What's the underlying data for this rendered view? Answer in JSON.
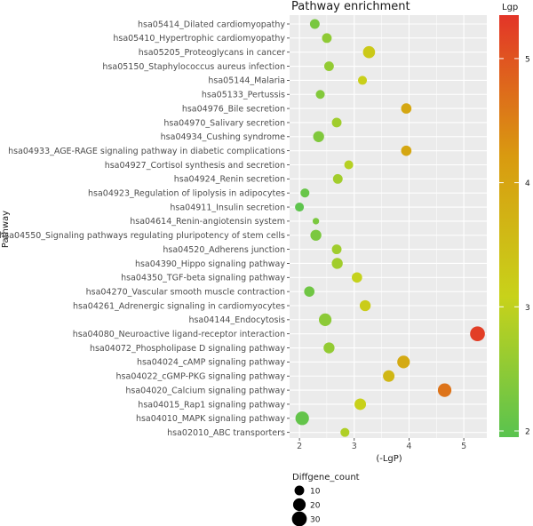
{
  "chart_data": {
    "type": "scatter",
    "title": "Pathway enrichment",
    "xlabel": "(-LgP)",
    "ylabel": "Pathway",
    "xlim": [
      1.82,
      5.42
    ],
    "x_ticks": [
      "2",
      "3",
      "4",
      "5"
    ],
    "grid": true,
    "categories": [
      "hsa05414_Dilated cardiomyopathy",
      "hsa05410_Hypertrophic cardiomyopathy",
      "hsa05205_Proteoglycans in cancer",
      "hsa05150_Staphylococcus aureus infection",
      "hsa05144_Malaria",
      "hsa05133_Pertussis",
      "hsa04976_Bile secretion",
      "hsa04970_Salivary secretion",
      "hsa04934_Cushing syndrome",
      "hsa04933_AGE-RAGE signaling pathway in diabetic complications",
      "hsa04927_Cortisol synthesis and secretion",
      "hsa04924_Renin secretion",
      "hsa04923_Regulation of lipolysis in adipocytes",
      "hsa04911_Insulin secretion",
      "hsa04614_Renin-angiotensin system",
      "hsa04550_Signaling pathways regulating pluripotency of stem cells",
      "hsa04520_Adherens junction",
      "hsa04390_Hippo signaling pathway",
      "hsa04350_TGF-beta signaling pathway",
      "hsa04270_Vascular smooth muscle contraction",
      "hsa04261_Adrenergic signaling in cardiomyocytes",
      "hsa04144_Endocytosis",
      "hsa04080_Neuroactive ligand-receptor interaction",
      "hsa04072_Phospholipase D signaling pathway",
      "hsa04024_cAMP signaling pathway",
      "hsa04022_cGMP-PKG signaling pathway",
      "hsa04020_Calcium signaling pathway",
      "hsa04015_Rap1 signaling pathway",
      "hsa04010_MAPK signaling pathway",
      "hsa02010_ABC transporters"
    ],
    "x": [
      2.28,
      2.5,
      3.27,
      2.54,
      3.15,
      2.38,
      3.95,
      2.68,
      2.35,
      3.95,
      2.9,
      2.7,
      2.1,
      2.0,
      2.3,
      2.3,
      2.68,
      2.69,
      3.05,
      2.18,
      3.2,
      2.47,
      5.25,
      2.54,
      3.9,
      3.63,
      4.65,
      3.11,
      2.05,
      2.83
    ],
    "counts": [
      10,
      10,
      18,
      10,
      8,
      8,
      12,
      10,
      14,
      12,
      8,
      10,
      8,
      8,
      3,
      14,
      10,
      14,
      12,
      12,
      14,
      20,
      30,
      14,
      20,
      16,
      24,
      16,
      24,
      8
    ],
    "color_legend": {
      "title": "Lgp",
      "ticks": [
        "2",
        "3",
        "4",
        "5"
      ],
      "range": [
        1.95,
        5.35
      ],
      "colors": [
        "#59c34f",
        "#c8d21a",
        "#d99a10",
        "#e33528"
      ]
    },
    "size_legend": {
      "title": "Diffgene_count",
      "values": [
        10,
        20,
        30
      ]
    }
  }
}
